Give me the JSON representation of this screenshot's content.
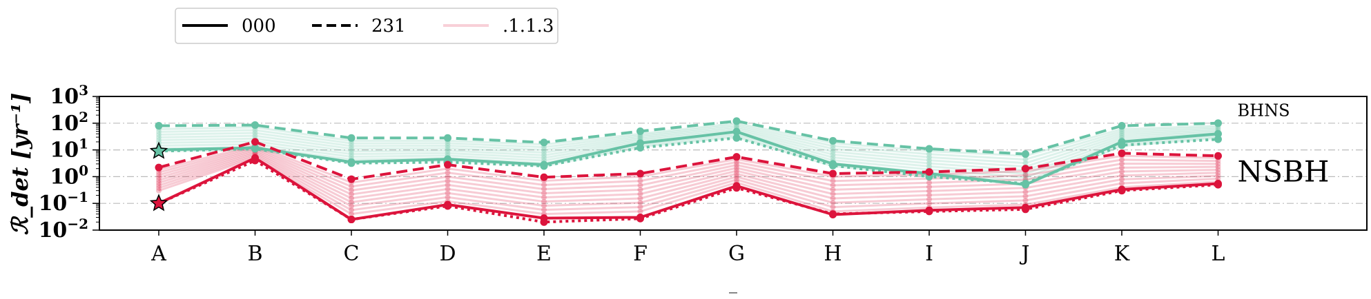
{
  "chart_data": {
    "type": "line",
    "categories": [
      "A",
      "B",
      "C",
      "D",
      "E",
      "F",
      "G",
      "H",
      "I",
      "J",
      "K",
      "L"
    ],
    "ylabel": "ℛ_det [yr⁻¹]",
    "xlabel": "_",
    "yscale": "log",
    "ylim": [
      0.01,
      1000
    ],
    "yticks": [
      {
        "value": 0.01,
        "base": "10",
        "exp": "−2"
      },
      {
        "value": 0.1,
        "base": "10",
        "exp": "−1"
      },
      {
        "value": 1,
        "base": "10",
        "exp": "0"
      },
      {
        "value": 10,
        "base": "10",
        "exp": "1"
      },
      {
        "value": 100,
        "base": "10",
        "exp": "2"
      },
      {
        "value": 1000,
        "base": "10",
        "exp": "3"
      }
    ],
    "grid": "horizontal dash-dot",
    "legend": {
      "placement": "top-left, outside",
      "entries": [
        {
          "label": "000",
          "style": "solid"
        },
        {
          "label": "231",
          "style": "dashed"
        },
        {
          "label": ".1.1.3",
          "style": "faint"
        }
      ]
    },
    "annotations": [
      {
        "text": "BHNS",
        "x_index": 11,
        "y": 300
      },
      {
        "text": "NSBH",
        "x_index": 11,
        "y": 1.5
      }
    ],
    "colors": {
      "bhns": "#66c2a5",
      "nsbh": "#dc143c"
    },
    "series": [
      {
        "group": "bhns",
        "style": "solid",
        "values": [
          10,
          12,
          3.5,
          4.5,
          2.8,
          18,
          48,
          3,
          1.3,
          0.5,
          20,
          40
        ]
      },
      {
        "group": "bhns",
        "style": "dashed",
        "values": [
          80,
          85,
          28,
          28,
          19,
          50,
          120,
          22,
          11,
          7,
          80,
          100
        ]
      },
      {
        "group": "bhns",
        "style": "dotted",
        "values": [
          9,
          11,
          3.2,
          3.5,
          2.5,
          12,
          28,
          2.6,
          1.0,
          0.55,
          15,
          25
        ]
      },
      {
        "group": "nsbh",
        "style": "solid",
        "values": [
          0.1,
          5,
          0.025,
          0.09,
          0.028,
          0.03,
          0.45,
          0.038,
          0.055,
          0.07,
          0.33,
          0.55
        ]
      },
      {
        "group": "nsbh",
        "style": "dashed",
        "values": [
          2.2,
          20,
          0.8,
          2.8,
          0.95,
          1.3,
          5.5,
          1.3,
          1.5,
          2,
          7.5,
          6
        ]
      },
      {
        "group": "nsbh",
        "style": "dotted",
        "values": [
          0.1,
          4,
          0.025,
          0.08,
          0.02,
          0.027,
          0.38,
          0.04,
          0.05,
          0.06,
          0.3,
          0.5
        ]
      }
    ],
    "faint_band": {
      "bhns": {
        "low": [
          9,
          10,
          3.5,
          4,
          2.5,
          13,
          30,
          2.5,
          1.1,
          0.5,
          14,
          28
        ],
        "high": [
          60,
          70,
          22,
          22,
          16,
          40,
          100,
          18,
          9,
          6,
          60,
          80
        ]
      },
      "nsbh": {
        "low": [
          0.3,
          5,
          0.04,
          0.12,
          0.04,
          0.05,
          0.6,
          0.05,
          0.07,
          0.09,
          0.4,
          0.65
        ],
        "high": [
          1.8,
          15,
          0.6,
          2,
          0.7,
          1,
          4.5,
          1,
          1.2,
          1.6,
          6,
          5
        ]
      }
    },
    "markers": [
      {
        "x_index": 0,
        "y": 9,
        "group": "bhns",
        "symbol": "star"
      },
      {
        "x_index": 0,
        "y": 0.1,
        "group": "nsbh",
        "symbol": "star"
      }
    ]
  }
}
